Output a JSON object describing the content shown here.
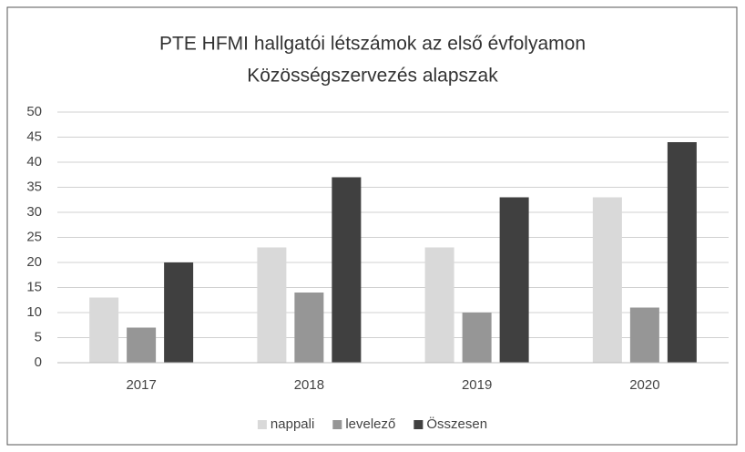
{
  "chart_data": {
    "type": "bar",
    "title": "PTE HFMI hallgatói létszámok az első évfolyamon",
    "subtitle": "Közösségszervezés alapszak",
    "categories": [
      "2017",
      "2018",
      "2019",
      "2020"
    ],
    "series": [
      {
        "name": "nappali",
        "color": "#d9d9d9",
        "values": [
          13,
          23,
          23,
          33
        ]
      },
      {
        "name": "levelező",
        "color": "#969696",
        "values": [
          7,
          14,
          10,
          11
        ]
      },
      {
        "name": "Összesen",
        "color": "#404040",
        "values": [
          20,
          37,
          33,
          44
        ]
      }
    ],
    "ylim": [
      0,
      50
    ],
    "yticks": [
      0,
      5,
      10,
      15,
      20,
      25,
      30,
      35,
      40,
      45,
      50
    ],
    "grid": true,
    "legend": "bottom"
  }
}
